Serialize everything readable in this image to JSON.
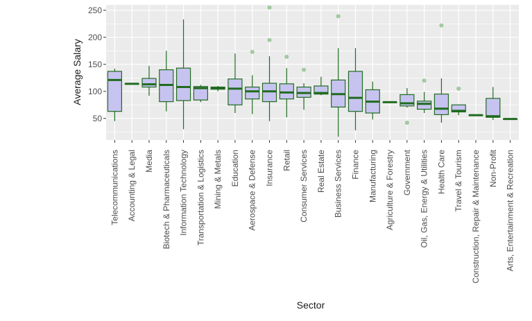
{
  "chart_data": {
    "type": "boxplot",
    "xlabel": "Sector",
    "ylabel": "Average Salary",
    "ylim": [
      10,
      260
    ],
    "yticks": [
      50,
      100,
      150,
      200,
      250
    ],
    "grid": true,
    "legend": "none",
    "colors": {
      "panel": "#ebebeb",
      "grid": "#ffffff",
      "box_fill": "#c7c3f0",
      "box_line": "#1f6b1f",
      "outlier": "#3f9a3f"
    },
    "categories": [
      "Telecommunications",
      "Accounting & Legal",
      "Media",
      "Biotech & Pharmaceuticals",
      "Information Technology",
      "Transportation & Logistics",
      "Mining & Metals",
      "Education",
      "Aerospace & Defense",
      "Insurance",
      "Retail",
      "Consumer Services",
      "Real Estate",
      "Business Services",
      "Finance",
      "Manufacturing",
      "Agriculture & Forestry",
      "Government",
      "Oil, Gas, Energy & Utilities",
      "Health Care",
      "Travel & Tourism",
      "Construction, Repair & Maintenance",
      "Non-Profit",
      "Arts, Entertainment & Recreation"
    ],
    "boxes": [
      {
        "min": 45,
        "q1": 63,
        "median": 121,
        "q3": 137,
        "max": 142,
        "outliers": []
      },
      {
        "min": 114,
        "q1": 114,
        "median": 114,
        "q3": 114,
        "max": 114,
        "outliers": []
      },
      {
        "min": 92,
        "q1": 108,
        "median": 113,
        "q3": 124,
        "max": 147,
        "outliers": []
      },
      {
        "min": 63,
        "q1": 81,
        "median": 112,
        "q3": 140,
        "max": 175,
        "outliers": []
      },
      {
        "min": 30,
        "q1": 83,
        "median": 108,
        "q3": 143,
        "max": 233,
        "outliers": []
      },
      {
        "min": 80,
        "q1": 84,
        "median": 106,
        "q3": 109,
        "max": 112,
        "outliers": []
      },
      {
        "min": 100,
        "q1": 104,
        "median": 106,
        "q3": 108,
        "max": 110,
        "outliers": []
      },
      {
        "min": 60,
        "q1": 75,
        "median": 105,
        "q3": 123,
        "max": 170,
        "outliers": []
      },
      {
        "min": 58,
        "q1": 86,
        "median": 100,
        "q3": 108,
        "max": 130,
        "outliers": [
          173
        ]
      },
      {
        "min": 45,
        "q1": 81,
        "median": 100,
        "q3": 115,
        "max": 165,
        "outliers": [
          195,
          255
        ]
      },
      {
        "min": 52,
        "q1": 86,
        "median": 98,
        "q3": 114,
        "max": 143,
        "outliers": [
          164
        ]
      },
      {
        "min": 66,
        "q1": 89,
        "median": 97,
        "q3": 108,
        "max": 115,
        "outliers": [
          140
        ]
      },
      {
        "min": 93,
        "q1": 95,
        "median": 97,
        "q3": 110,
        "max": 127,
        "outliers": []
      },
      {
        "min": 16,
        "q1": 71,
        "median": 95,
        "q3": 121,
        "max": 180,
        "outliers": [
          239
        ]
      },
      {
        "min": 28,
        "q1": 63,
        "median": 88,
        "q3": 137,
        "max": 180,
        "outliers": []
      },
      {
        "min": 48,
        "q1": 60,
        "median": 81,
        "q3": 103,
        "max": 118,
        "outliers": []
      },
      {
        "min": 80,
        "q1": 80,
        "median": 80,
        "q3": 80,
        "max": 80,
        "outliers": []
      },
      {
        "min": 70,
        "q1": 73,
        "median": 78,
        "q3": 94,
        "max": 106,
        "outliers": [
          42
        ]
      },
      {
        "min": 60,
        "q1": 67,
        "median": 77,
        "q3": 82,
        "max": 99,
        "outliers": [
          120
        ]
      },
      {
        "min": 42,
        "q1": 57,
        "median": 68,
        "q3": 95,
        "max": 124,
        "outliers": [
          222
        ]
      },
      {
        "min": 56,
        "q1": 62,
        "median": 64,
        "q3": 75,
        "max": 75,
        "outliers": [
          105
        ]
      },
      {
        "min": 56,
        "q1": 56,
        "median": 56,
        "q3": 56,
        "max": 56,
        "outliers": []
      },
      {
        "min": 47,
        "q1": 52,
        "median": 54,
        "q3": 87,
        "max": 108,
        "outliers": []
      },
      {
        "min": 49,
        "q1": 49,
        "median": 49,
        "q3": 49,
        "max": 49,
        "outliers": []
      }
    ]
  }
}
